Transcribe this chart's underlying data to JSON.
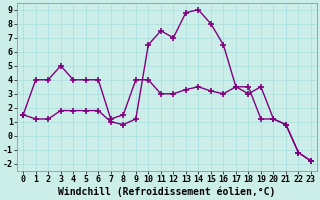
{
  "line1_x": [
    0,
    1,
    2,
    3,
    4,
    5,
    6,
    7,
    8,
    9,
    10,
    11,
    12,
    13,
    14,
    15,
    16,
    17,
    18,
    19,
    20,
    21,
    22,
    23
  ],
  "line1_y": [
    1.5,
    4.0,
    4.0,
    5.0,
    4.0,
    4.0,
    4.0,
    1.2,
    1.5,
    4.0,
    4.0,
    3.0,
    3.0,
    3.3,
    3.5,
    3.2,
    3.0,
    3.5,
    3.5,
    1.2,
    1.2,
    0.8,
    -1.2,
    -1.8
  ],
  "line2_x": [
    0,
    1,
    2,
    3,
    4,
    5,
    6,
    7,
    8,
    9,
    10,
    11,
    12,
    13,
    14,
    15,
    16,
    17,
    18,
    19,
    20,
    21,
    22,
    23
  ],
  "line2_y": [
    1.5,
    1.2,
    1.2,
    1.8,
    1.8,
    1.8,
    1.8,
    1.0,
    0.8,
    1.2,
    6.5,
    7.5,
    7.0,
    8.8,
    9.0,
    8.0,
    6.5,
    3.5,
    3.0,
    3.5,
    1.2,
    0.8,
    -1.2,
    -1.8
  ],
  "line_color": "#800080",
  "bg_color": "#cceee8",
  "xlabel": "Windchill (Refroidissement éolien,°C)",
  "xlim": [
    -0.5,
    23.5
  ],
  "ylim": [
    -2.5,
    9.5
  ],
  "yticks": [
    -2,
    -1,
    0,
    1,
    2,
    3,
    4,
    5,
    6,
    7,
    8,
    9
  ],
  "xticks": [
    0,
    1,
    2,
    3,
    4,
    5,
    6,
    7,
    8,
    9,
    10,
    11,
    12,
    13,
    14,
    15,
    16,
    17,
    18,
    19,
    20,
    21,
    22,
    23
  ],
  "marker": "+",
  "marker_size": 4,
  "line_width": 1.0,
  "grid_color": "#aadddd",
  "xlabel_fontsize": 7,
  "tick_fontsize": 6
}
